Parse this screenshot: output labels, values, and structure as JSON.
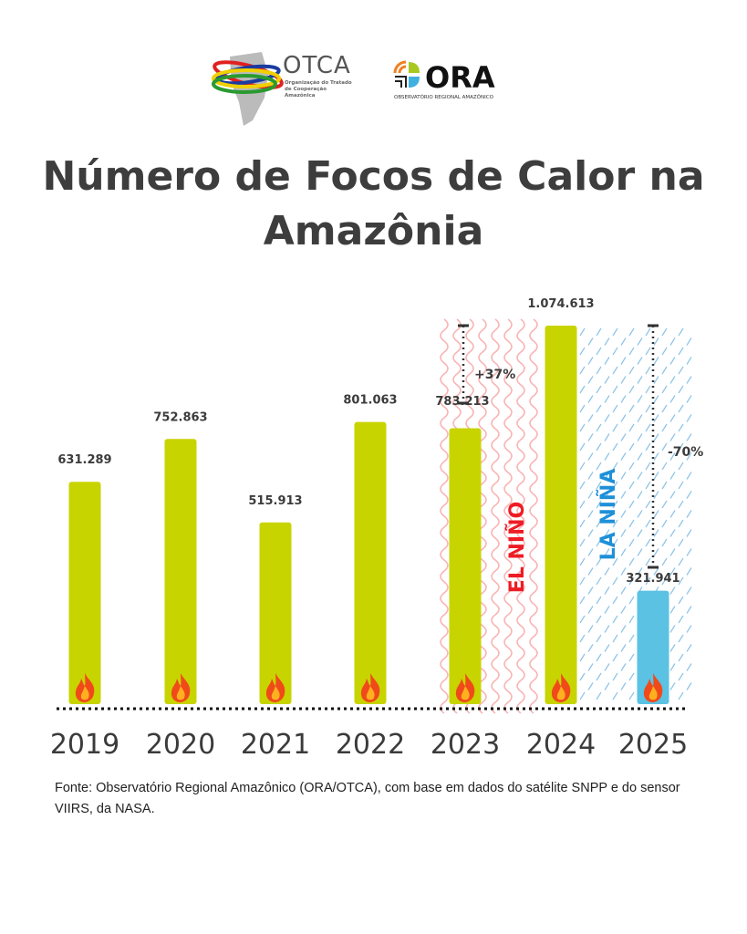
{
  "logos": {
    "otca": {
      "name": "OTCA",
      "subtitle": "Organização do Tratado de Cooperação Amazônica"
    },
    "ora": {
      "name": "ORA",
      "subtitle": "OBSERVATÓRIO REGIONAL AMAZÔNICO"
    }
  },
  "title": "Número de Focos de Calor na Amazônia",
  "chart_data": {
    "type": "bar",
    "categories": [
      "2019",
      "2020",
      "2021",
      "2022",
      "2023",
      "2024",
      "2025"
    ],
    "values": [
      631289,
      752863,
      515913,
      801063,
      783213,
      1074613,
      321941
    ],
    "data_labels": [
      "631.289",
      "752.863",
      "515.913",
      "801.063",
      "783.213",
      "1.074.613",
      "321.941"
    ],
    "bar_colors": [
      "#c8d400",
      "#c8d400",
      "#c8d400",
      "#c8d400",
      "#c8d400",
      "#c8d400",
      "#5bc2e3"
    ],
    "ylim": [
      0,
      1074613
    ],
    "grid": false,
    "annotations": [
      {
        "text": "+37%",
        "from": "2023",
        "to": "2024"
      },
      {
        "text": "-70%",
        "from": "2024",
        "to": "2025"
      },
      {
        "text": "EL NIÑO",
        "color": "#ee1c24",
        "span": [
          "2023",
          "2024"
        ]
      },
      {
        "text": "LA NIÑA",
        "color": "#1e90d8",
        "span": [
          "2024",
          "2025"
        ]
      }
    ],
    "icon": "flame-icon"
  },
  "source": "Fonte: Observatório Regional Amazônico (ORA/OTCA), com base em dados do satélite SNPP e do sensor VIIRS, da NASA."
}
